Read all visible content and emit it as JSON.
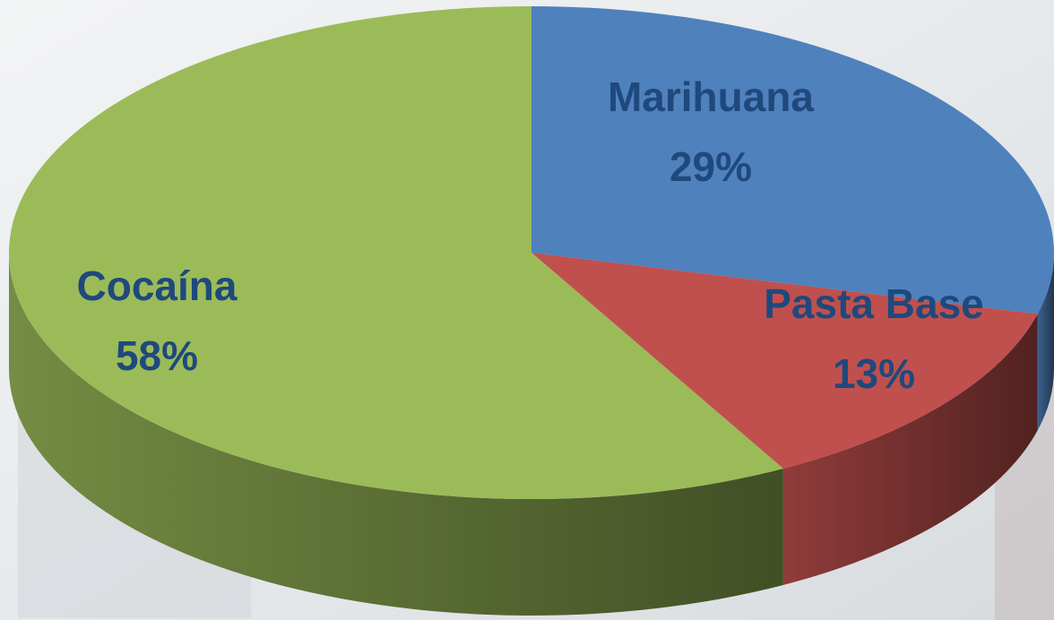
{
  "chart_data": {
    "type": "pie",
    "categories": [
      "Marihuana",
      "Pasta Base",
      "Cocaína"
    ],
    "values": [
      29,
      13,
      58
    ],
    "value_labels": [
      "29%",
      "13%",
      "58%"
    ],
    "colors": [
      "#4f81bd",
      "#c0504d",
      "#9bbb59"
    ]
  }
}
